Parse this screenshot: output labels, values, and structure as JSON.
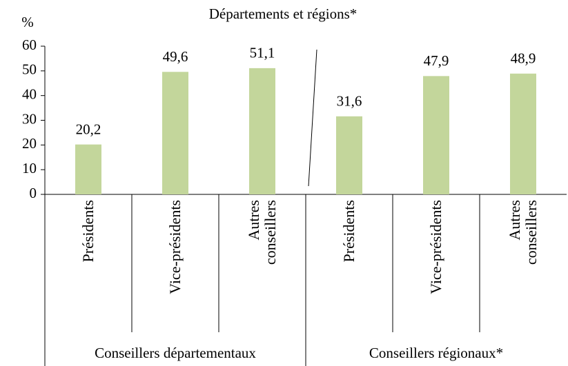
{
  "chart_data": {
    "type": "bar",
    "title": "Départements et régions*",
    "y_label": "%",
    "categories": [
      "Présidents",
      "Vice-présidents",
      "Autres\nconseillers",
      "Présidents",
      "Vice-présidents",
      "Autres\nconseillers"
    ],
    "values": [
      20.2,
      49.6,
      51.1,
      31.6,
      47.9,
      48.9
    ],
    "value_labels": [
      "20,2",
      "49,6",
      "51,1",
      "31,6",
      "47,9",
      "48,9"
    ],
    "groups": [
      "Conseillers départementaux",
      "Conseillers régionaux*"
    ],
    "color": "#c3d69b",
    "ylim": [
      0,
      60
    ],
    "yticks": [
      0,
      10,
      20,
      30,
      40,
      50,
      60
    ],
    "grid": false
  }
}
